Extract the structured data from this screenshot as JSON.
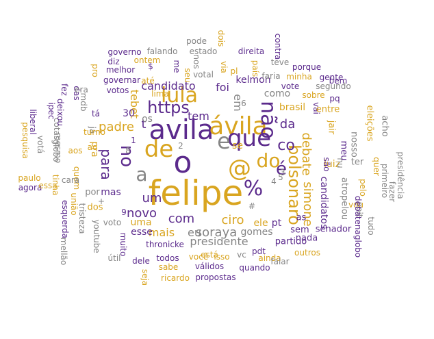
{
  "palette": {
    "purple": "#5b2a8c",
    "gold": "#d9a520",
    "gray": "#858585"
  },
  "words": [
    "felipe",
    "o",
    "avila",
    "ávila",
    "que",
    "de",
    "e",
    "@",
    "não",
    "%",
    "a",
    "no",
    "lula",
    "https",
    "padre",
    "é",
    "do",
    "bolsonaro",
    "co",
    "da",
    "um",
    "para",
    "com",
    "ciro",
    "soraya",
    "novo",
    "debate",
    "simone",
    "tem",
    "t",
    "se",
    "em",
    "presidente",
    "eu",
    "mais",
    "pt",
    "ele",
    "luiz",
    "candidato",
    "tebet",
    "foi",
    "kelmon",
    "brasil",
    "como",
    "vai",
    "candidatos",
    "são",
    "pra",
    "mas",
    "30",
    "os",
    "thronicke",
    "gomes",
    "esse",
    "uma",
    "dos",
    "por",
    "as",
    "partido",
    "sem",
    "nada",
    "senador",
    "atropelou",
    "ter",
    "jair",
    "meu",
    "nu",
    "nosso",
    "eleições",
    "entre",
    "acho",
    "primeiro",
    "presidência",
    "fazer",
    "tudo",
    "poit",
    "vou",
    "pelo",
    "quer",
    "debatenaglobo",
    "outros",
    "ainda",
    "falar",
    "quando",
    "vc",
    "pdt",
    "válidos",
    "propostas",
    "ricardo",
    "está",
    "sabe",
    "todos",
    "dele",
    "isso",
    "você",
    "útil",
    "muito",
    "seja",
    "voto",
    "youtube",
    "tristeza",
    "mellão",
    "esquerda",
    "união",
    "quem",
    "tinha",
    "cara",
    "agora",
    "essa",
    "paulo",
    "pesquisa",
    "votá",
    "globo",
    "cotas",
    "liberal",
    "deixou",
    "mesmo",
    "ipec",
    "mdb",
    "tá",
    "já",
    "turno",
    "fez",
    "das",
    "era",
    "votos",
    "governar",
    "melhor",
    "pro",
    "diz",
    "ontem",
    "até",
    "lima",
    "governo",
    "falando",
    "pode",
    "nos",
    "me",
    "seu",
    "estado",
    "direita",
    "dois",
    "contra",
    "via",
    "pl",
    "país",
    "teve",
    "faria",
    "votal",
    "minha",
    "porque",
    "gente",
    "bem",
    "vote",
    "segundo",
    "sobre",
    "pq",
    "aos",
    "ao",
    "9",
    "8",
    "6",
    "5",
    "4",
    "3",
    "2",
    "1",
    "$",
    "+",
    "#"
  ]
}
